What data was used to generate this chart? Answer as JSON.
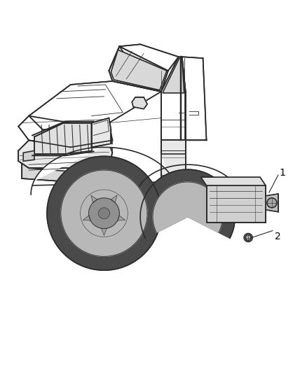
{
  "background_color": "#ffffff",
  "figure_width": 4.38,
  "figure_height": 5.33,
  "dpi": 100,
  "line_color": "#2a2a2a",
  "lw_main": 1.2,
  "lw_detail": 0.6,
  "lw_light": 0.4,
  "label1": "1",
  "label2": "2",
  "annotation_fontsize": 10,
  "annotation_color": "#000000",
  "car_fill": "#ffffff",
  "dark_fill": "#c8c8c8",
  "mid_fill": "#e8e8e8"
}
